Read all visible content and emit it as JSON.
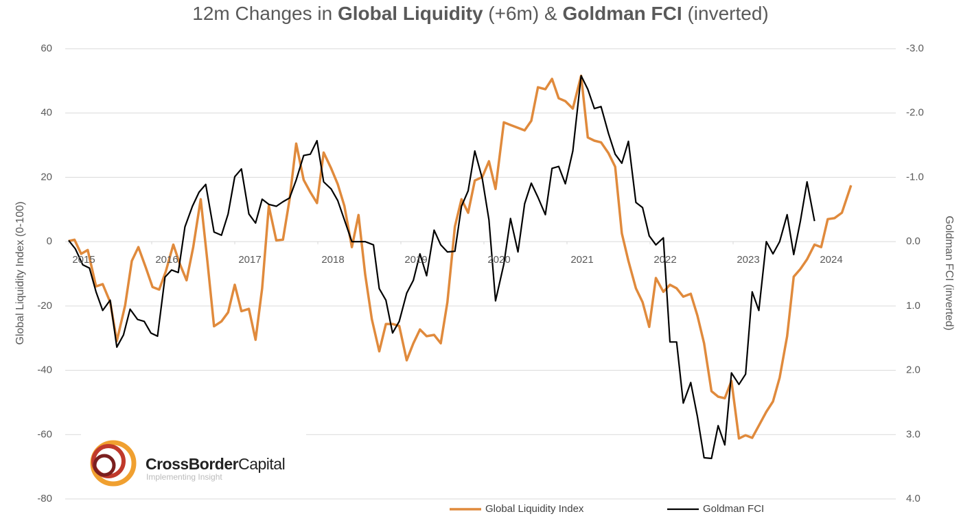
{
  "chart_data": {
    "type": "line",
    "title_parts": [
      {
        "text": "12m Changes in ",
        "bold": false
      },
      {
        "text": "Global Liquidity",
        "bold": true
      },
      {
        "text": " (+6m) & ",
        "bold": false
      },
      {
        "text": "Goldman FCI",
        "bold": true
      },
      {
        "text": " (inverted)",
        "bold": false
      }
    ],
    "y_label": "Global Liquidity Index (0-100)",
    "y2_label": "Goldman FCI (inverted)",
    "xlim": [
      2015,
      2025
    ],
    "xticks": [
      2015,
      2016,
      2017,
      2018,
      2019,
      2020,
      2021,
      2022,
      2023,
      2024
    ],
    "ylim": [
      -80,
      60
    ],
    "yticks": [
      -80,
      -60,
      -40,
      -20,
      0,
      20,
      40,
      60
    ],
    "y2lim": [
      4,
      -3
    ],
    "y2ticks": [
      {
        "value": -3,
        "label": "-3.0"
      },
      {
        "value": -2,
        "label": "-2.0"
      },
      {
        "value": -1,
        "label": "-1.0"
      },
      {
        "value": 0,
        "label": "0.0"
      },
      {
        "value": 1,
        "label": "1.0"
      },
      {
        "value": 2,
        "label": "2.0"
      },
      {
        "value": 3,
        "label": "3.0"
      },
      {
        "value": 4,
        "label": "4.0"
      }
    ],
    "grid": true,
    "legend": "bottom",
    "series": [
      {
        "name": "Global Liquidity Index",
        "color": "#e08a3c",
        "axis": "y",
        "x": [
          2015.0,
          2015.07,
          2015.15,
          2015.23,
          2015.33,
          2015.41,
          2015.5,
          2015.58,
          2015.68,
          2015.76,
          2015.84,
          2015.93,
          2016.01,
          2016.09,
          2016.17,
          2016.26,
          2016.34,
          2016.42,
          2016.5,
          2016.59,
          2016.67,
          2016.75,
          2016.84,
          2016.92,
          2017.0,
          2017.08,
          2017.17,
          2017.25,
          2017.33,
          2017.41,
          2017.5,
          2017.58,
          2017.66,
          2017.74,
          2017.83,
          2017.91,
          2017.99,
          2018.07,
          2018.16,
          2018.24,
          2018.32,
          2018.41,
          2018.49,
          2018.57,
          2018.65,
          2018.74,
          2018.82,
          2018.9,
          2018.98,
          2019.07,
          2019.15,
          2019.23,
          2019.31,
          2019.4,
          2019.48,
          2019.56,
          2019.65,
          2019.73,
          2019.81,
          2019.89,
          2019.98,
          2020.06,
          2020.14,
          2020.24,
          2020.32,
          2020.41,
          2020.49,
          2020.57,
          2020.65,
          2020.74,
          2020.82,
          2020.9,
          2020.98,
          2021.07,
          2021.17,
          2021.25,
          2021.33,
          2021.41,
          2021.5,
          2021.58,
          2021.66,
          2021.74,
          2021.83,
          2021.91,
          2021.99,
          2022.07,
          2022.16,
          2022.24,
          2022.32,
          2022.4,
          2022.49,
          2022.57,
          2022.65,
          2022.74,
          2022.82,
          2022.9,
          2022.98,
          2023.07,
          2023.15,
          2023.23,
          2023.31,
          2023.4,
          2023.48,
          2023.56,
          2023.65,
          2023.73,
          2023.81,
          2023.89,
          2023.98,
          2024.06,
          2024.14,
          2024.22,
          2024.31,
          2024.42
        ],
        "values": [
          0.2,
          0.6,
          -3.8,
          -2.6,
          -13.9,
          -13.2,
          -18.8,
          -30.9,
          -19.8,
          -6.0,
          -1.7,
          -8.1,
          -14.1,
          -14.9,
          -9.2,
          -0.9,
          -7.0,
          -12.0,
          -1.7,
          13.2,
          -6.0,
          -26.3,
          -24.8,
          -22.0,
          -13.4,
          -21.6,
          -20.9,
          -30.5,
          -14.5,
          11.1,
          0.4,
          0.6,
          13.2,
          30.5,
          19.2,
          15.4,
          12.0,
          27.7,
          22.8,
          17.9,
          11.1,
          -1.7,
          8.3,
          -10.2,
          -24.1,
          -34.1,
          -25.6,
          -25.6,
          -26.2,
          -36.9,
          -31.6,
          -27.3,
          -29.4,
          -29.0,
          -31.6,
          -18.8,
          4.7,
          13.2,
          9.0,
          19.0,
          20.1,
          25.0,
          16.4,
          37.1,
          36.3,
          35.4,
          34.6,
          37.6,
          48.0,
          47.4,
          50.6,
          44.6,
          43.7,
          41.4,
          51.6,
          32.4,
          31.4,
          30.9,
          27.5,
          23.3,
          2.6,
          -6.0,
          -14.5,
          -18.8,
          -26.5,
          -11.3,
          -15.6,
          -13.4,
          -14.5,
          -17.1,
          -16.2,
          -23.0,
          -31.6,
          -46.5,
          -48.2,
          -48.7,
          -43.3,
          -61.2,
          -60.2,
          -61.0,
          -57.2,
          -52.9,
          -49.7,
          -42.3,
          -29.4,
          -10.9,
          -8.5,
          -5.5,
          -0.9,
          -1.7,
          7.0,
          7.3,
          9.0,
          17.5
        ]
      },
      {
        "name": "Goldman FCI",
        "color": "#000000",
        "axis": "y2",
        "x": [
          2015.0,
          2015.08,
          2015.17,
          2015.25,
          2015.33,
          2015.41,
          2015.5,
          2015.58,
          2015.66,
          2015.74,
          2015.83,
          2015.91,
          2015.99,
          2016.07,
          2016.16,
          2016.24,
          2016.32,
          2016.4,
          2016.49,
          2016.57,
          2016.65,
          2016.75,
          2016.84,
          2016.92,
          2017.0,
          2017.08,
          2017.17,
          2017.25,
          2017.33,
          2017.41,
          2017.5,
          2017.58,
          2017.66,
          2017.74,
          2017.83,
          2017.91,
          2017.99,
          2018.07,
          2018.16,
          2018.24,
          2018.32,
          2018.41,
          2018.49,
          2018.57,
          2018.67,
          2018.74,
          2018.82,
          2018.9,
          2018.98,
          2019.07,
          2019.15,
          2019.23,
          2019.31,
          2019.4,
          2019.48,
          2019.56,
          2019.65,
          2019.73,
          2019.81,
          2019.89,
          2019.98,
          2020.06,
          2020.14,
          2020.24,
          2020.32,
          2020.41,
          2020.49,
          2020.57,
          2020.65,
          2020.74,
          2020.82,
          2020.9,
          2020.98,
          2021.07,
          2021.17,
          2021.25,
          2021.33,
          2021.41,
          2021.5,
          2021.58,
          2021.66,
          2021.74,
          2021.83,
          2021.91,
          2021.99,
          2022.07,
          2022.16,
          2022.24,
          2022.32,
          2022.4,
          2022.49,
          2022.57,
          2022.65,
          2022.74,
          2022.82,
          2022.9,
          2022.98,
          2023.07,
          2023.15,
          2023.23,
          2023.31,
          2023.4,
          2023.48,
          2023.56,
          2023.65,
          2023.73,
          2023.81,
          2023.89,
          2023.98
        ],
        "values": [
          -0.02,
          0.11,
          0.36,
          0.41,
          0.78,
          1.07,
          0.91,
          1.64,
          1.45,
          1.05,
          1.21,
          1.24,
          1.42,
          1.47,
          0.55,
          0.44,
          0.48,
          -0.23,
          -0.55,
          -0.77,
          -0.89,
          -0.15,
          -0.1,
          -0.43,
          -1.01,
          -1.13,
          -0.43,
          -0.29,
          -0.66,
          -0.58,
          -0.55,
          -0.62,
          -0.68,
          -0.96,
          -1.34,
          -1.36,
          -1.57,
          -0.93,
          -0.82,
          -0.64,
          -0.34,
          0,
          0,
          0,
          0.05,
          0.73,
          0.91,
          1.42,
          1.24,
          0.8,
          0.6,
          0.19,
          0.53,
          -0.18,
          0.05,
          0.16,
          0.15,
          -0.55,
          -0.79,
          -1.41,
          -0.98,
          -0.34,
          0.92,
          0.35,
          -0.36,
          0.16,
          -0.59,
          -0.91,
          -0.69,
          -0.42,
          -1.14,
          -1.17,
          -0.9,
          -1.41,
          -2.58,
          -2.37,
          -2.07,
          -2.1,
          -1.68,
          -1.36,
          -1.22,
          -1.56,
          -0.61,
          -0.53,
          -0.09,
          0.05,
          -0.06,
          1.56,
          1.56,
          2.51,
          2.19,
          2.72,
          3.36,
          3.37,
          2.86,
          3.16,
          2.04,
          2.22,
          2.06,
          0.78,
          1.07,
          0,
          0.19,
          0,
          -0.42,
          0.2,
          -0.32,
          -0.93,
          -0.32
        ]
      }
    ],
    "logo": {
      "brand_bold": "CrossBorder",
      "brand_light": "Capital",
      "tagline": "Implementing Insight"
    }
  }
}
